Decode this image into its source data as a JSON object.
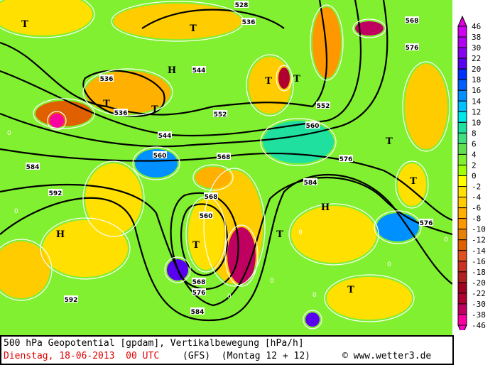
{
  "map": {
    "contour_labels": [
      "528",
      "536",
      "536",
      "536",
      "544",
      "544",
      "552",
      "552",
      "560",
      "560",
      "560",
      "568",
      "568",
      "568",
      "568",
      "576",
      "576",
      "576",
      "576",
      "584",
      "584",
      "584",
      "592",
      "592"
    ],
    "pressure_markers": [
      "T",
      "T",
      "T",
      "T",
      "H",
      "T",
      "T",
      "T",
      "H",
      "T",
      "T",
      "H",
      "T",
      "T"
    ],
    "zero_labels": [
      "0",
      "0",
      "0",
      "0",
      "0",
      "0",
      "0",
      "0"
    ]
  },
  "legend": {
    "labels": [
      "46",
      "38",
      "30",
      "22",
      "20",
      "18",
      "16",
      "14",
      "12",
      "10",
      "8",
      "6",
      "4",
      "2",
      "0",
      "-2",
      "-4",
      "-6",
      "-8",
      "-10",
      "-12",
      "-14",
      "-16",
      "-18",
      "-20",
      "-22",
      "-30",
      "-38",
      "-46"
    ],
    "colors": [
      "#d000f0",
      "#b000f0",
      "#8800f0",
      "#5a00f0",
      "#0030ff",
      "#0060ff",
      "#0090ff",
      "#00c0ff",
      "#00e8e8",
      "#20e0a0",
      "#40e080",
      "#60e050",
      "#80f030",
      "#a0ff00",
      "#ffff00",
      "#ffe000",
      "#ffcc00",
      "#ffb000",
      "#ff9800",
      "#e88000",
      "#e06000",
      "#e05020",
      "#cc3020",
      "#b02020",
      "#a00020",
      "#b00030",
      "#c00060",
      "#ff00a0"
    ],
    "arrow_top_color": "#e000e0",
    "arrow_bottom_color": "#ff00c0"
  },
  "footer": {
    "title": "500 hPa Geopotential [gpdam], Vertikalbewegung [hPa/h]",
    "date": "Dienstag, 18-06-2013  00 UTC",
    "model": "(GFS)  (Montag 12 + 12)",
    "copyright": "© www.wetter3.de"
  }
}
